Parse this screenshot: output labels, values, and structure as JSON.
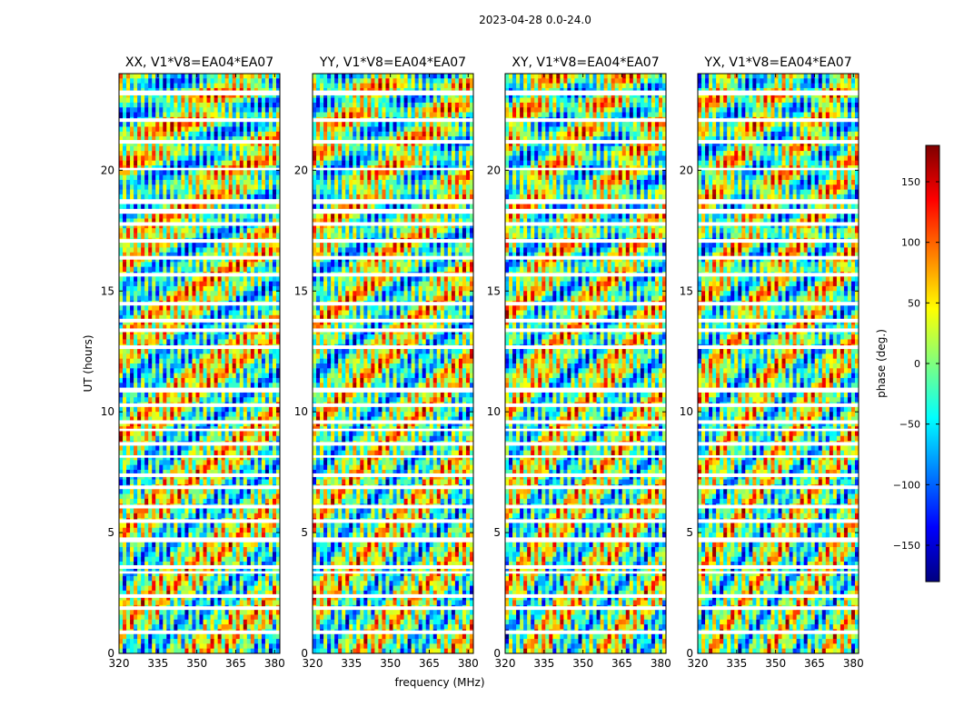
{
  "chart_data": {
    "type": "heatmap",
    "suptitle": "2023-04-28 0.0-24.0",
    "xlabel": "frequency (MHz)",
    "ylabel": "UT (hours)",
    "xlim": [
      320,
      382
    ],
    "ylim": [
      0,
      24
    ],
    "xticks": [
      320,
      335,
      350,
      365,
      380
    ],
    "yticks": [
      0,
      5,
      10,
      15,
      20
    ],
    "colorbar": {
      "label": "phase (deg.)",
      "range": [
        -180,
        180
      ],
      "ticks": [
        150,
        100,
        50,
        0,
        -50,
        -100,
        -150
      ],
      "tick_labels": [
        "150",
        "100",
        "50",
        "0",
        "−50",
        "−100",
        "−150"
      ],
      "colormap": "jet",
      "colors": [
        "#00007f",
        "#0000ff",
        "#007fff",
        "#00ffff",
        "#7fff7f",
        "#ffff00",
        "#ff7f00",
        "#ff0000",
        "#7f0000"
      ]
    },
    "panels": [
      {
        "title": "XX, V1*V8=EA04*EA07",
        "pol": "XX"
      },
      {
        "title": "YY, V1*V8=EA04*EA07",
        "pol": "YY"
      },
      {
        "title": "XY, V1*V8=EA04*EA07",
        "pol": "XY"
      },
      {
        "title": "YX, V1*V8=EA04*EA07",
        "pol": "YX"
      }
    ],
    "blank_intervals_hours": [
      [
        23.1,
        23.3
      ],
      [
        22.0,
        22.15
      ],
      [
        21.1,
        21.25
      ],
      [
        20.0,
        20.1
      ],
      [
        18.6,
        18.8
      ],
      [
        18.2,
        18.4
      ],
      [
        17.7,
        17.85
      ],
      [
        17.0,
        17.15
      ],
      [
        16.3,
        16.45
      ],
      [
        15.6,
        15.75
      ],
      [
        14.4,
        14.55
      ],
      [
        13.7,
        13.85
      ],
      [
        13.3,
        13.45
      ],
      [
        12.6,
        12.75
      ],
      [
        10.8,
        11.0
      ],
      [
        10.2,
        10.35
      ],
      [
        9.5,
        9.65
      ],
      [
        9.2,
        9.3
      ],
      [
        8.6,
        8.75
      ],
      [
        8.1,
        8.2
      ],
      [
        7.3,
        7.45
      ],
      [
        6.8,
        6.95
      ],
      [
        6.0,
        6.15
      ],
      [
        5.4,
        5.55
      ],
      [
        4.6,
        4.8
      ],
      [
        3.5,
        3.65
      ],
      [
        3.3,
        3.4
      ],
      [
        2.3,
        2.45
      ],
      [
        1.8,
        1.95
      ],
      [
        0.8,
        0.95
      ]
    ],
    "grid": false
  }
}
